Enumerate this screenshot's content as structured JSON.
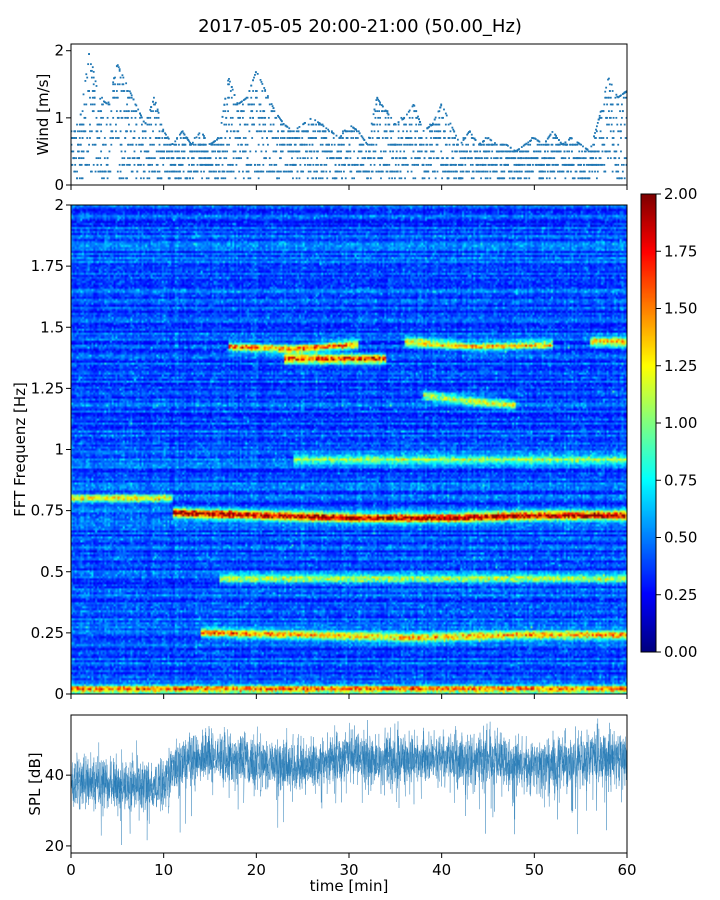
{
  "title": "2017-05-05 20:00-21:00 (50.00_Hz)",
  "chart_data": [
    {
      "type": "scatter",
      "name": "wind",
      "ylabel": "Wind [m/s]",
      "xlim": [
        0,
        60
      ],
      "ylim": [
        0,
        2.1
      ],
      "yticks": [
        "0",
        "1",
        "2"
      ],
      "ytick_values": [
        0,
        1,
        2
      ],
      "color": "#1f77b4",
      "sample_interval_min": 0.1,
      "value_step": 0.1,
      "envelope_x": [
        0,
        1,
        2,
        3,
        4,
        5,
        6,
        7,
        8,
        9,
        10,
        11,
        12,
        13,
        14,
        15,
        16,
        17,
        18,
        19,
        20,
        21,
        22,
        23,
        24,
        25,
        26,
        27,
        28,
        29,
        30,
        31,
        32,
        33,
        34,
        35,
        36,
        37,
        38,
        39,
        40,
        41,
        42,
        43,
        44,
        45,
        46,
        47,
        48,
        49,
        50,
        51,
        52,
        53,
        54,
        55,
        56,
        57,
        58,
        59,
        60
      ],
      "envelope_y": [
        0.8,
        1.0,
        2.0,
        1.3,
        1.2,
        1.8,
        1.5,
        1.2,
        0.9,
        1.3,
        0.8,
        0.6,
        0.8,
        0.6,
        0.8,
        0.6,
        0.7,
        1.6,
        1.2,
        1.3,
        1.7,
        1.4,
        1.1,
        0.9,
        0.8,
        0.9,
        1.0,
        0.9,
        0.8,
        0.7,
        0.9,
        0.8,
        0.6,
        1.3,
        1.1,
        0.9,
        1.0,
        1.2,
        0.8,
        0.9,
        1.2,
        0.9,
        0.6,
        0.8,
        0.6,
        0.7,
        0.6,
        0.6,
        0.5,
        0.6,
        0.7,
        0.6,
        0.8,
        0.6,
        0.7,
        0.6,
        0.5,
        1.0,
        1.6,
        1.3,
        1.4
      ]
    },
    {
      "type": "heatmap",
      "name": "spectrogram",
      "ylabel": "FFT Frequenz [Hz]",
      "xlim": [
        0,
        60
      ],
      "ylim": [
        0,
        2
      ],
      "yticks": [
        "0",
        "0.25",
        "0.5",
        "0.75",
        "1",
        "1.25",
        "1.5",
        "1.75",
        "2"
      ],
      "ytick_values": [
        0,
        0.25,
        0.5,
        0.75,
        1,
        1.25,
        1.5,
        1.75,
        2
      ],
      "colormap": "jet",
      "vmin": 0,
      "vmax": 2,
      "background_level": 0.3,
      "colorbar_ticks": [
        "0.00",
        "0.25",
        "0.50",
        "0.75",
        "1.00",
        "1.25",
        "1.50",
        "1.75",
        "2.00"
      ],
      "colorbar_values": [
        0,
        0.25,
        0.5,
        0.75,
        1,
        1.25,
        1.5,
        1.75,
        2
      ],
      "bands": [
        {
          "x0": 11,
          "x1": 60,
          "f": [
            0.74,
            0.73,
            0.72,
            0.72,
            0.73,
            0.73
          ],
          "level": 1.8
        },
        {
          "x0": 0,
          "x1": 11,
          "f": [
            0.8,
            0.8
          ],
          "level": 0.9
        },
        {
          "x0": 14,
          "x1": 60,
          "f": [
            0.25,
            0.24,
            0.23,
            0.24,
            0.24
          ],
          "level": 1.2
        },
        {
          "x0": 0,
          "x1": 60,
          "f": [
            0.02,
            0.02
          ],
          "level": 1.3
        },
        {
          "x0": 17,
          "x1": 31,
          "f": [
            1.42,
            1.41,
            1.43
          ],
          "level": 1.3
        },
        {
          "x0": 23,
          "x1": 34,
          "f": [
            1.37,
            1.37
          ],
          "level": 1.5
        },
        {
          "x0": 36,
          "x1": 52,
          "f": [
            1.44,
            1.42,
            1.43
          ],
          "level": 1.1
        },
        {
          "x0": 56,
          "x1": 60,
          "f": [
            1.44,
            1.44
          ],
          "level": 1.2
        },
        {
          "x0": 38,
          "x1": 48,
          "f": [
            1.22,
            1.2,
            1.18
          ],
          "level": 0.9
        },
        {
          "x0": 16,
          "x1": 60,
          "f": [
            0.47,
            0.47
          ],
          "level": 0.85
        },
        {
          "x0": 24,
          "x1": 60,
          "f": [
            0.96,
            0.96
          ],
          "level": 0.7
        }
      ]
    },
    {
      "type": "line",
      "name": "spl",
      "xlabel": "time [min]",
      "ylabel": "SPL [dB]",
      "xlim": [
        0,
        60
      ],
      "ylim": [
        18,
        57
      ],
      "xticks": [
        "0",
        "10",
        "20",
        "30",
        "40",
        "50",
        "60"
      ],
      "xtick_values": [
        0,
        10,
        20,
        30,
        40,
        50,
        60
      ],
      "yticks": [
        "20",
        "40"
      ],
      "ytick_values": [
        20,
        40
      ],
      "color": "#1f77b4",
      "mean_x": [
        0,
        5,
        10,
        11,
        12,
        14,
        20,
        25,
        30,
        35,
        40,
        45,
        50,
        55,
        60
      ],
      "mean_y": [
        38,
        37.5,
        37,
        41,
        44,
        45,
        44,
        42,
        45,
        44,
        45,
        44,
        43,
        44,
        45
      ]
    }
  ]
}
